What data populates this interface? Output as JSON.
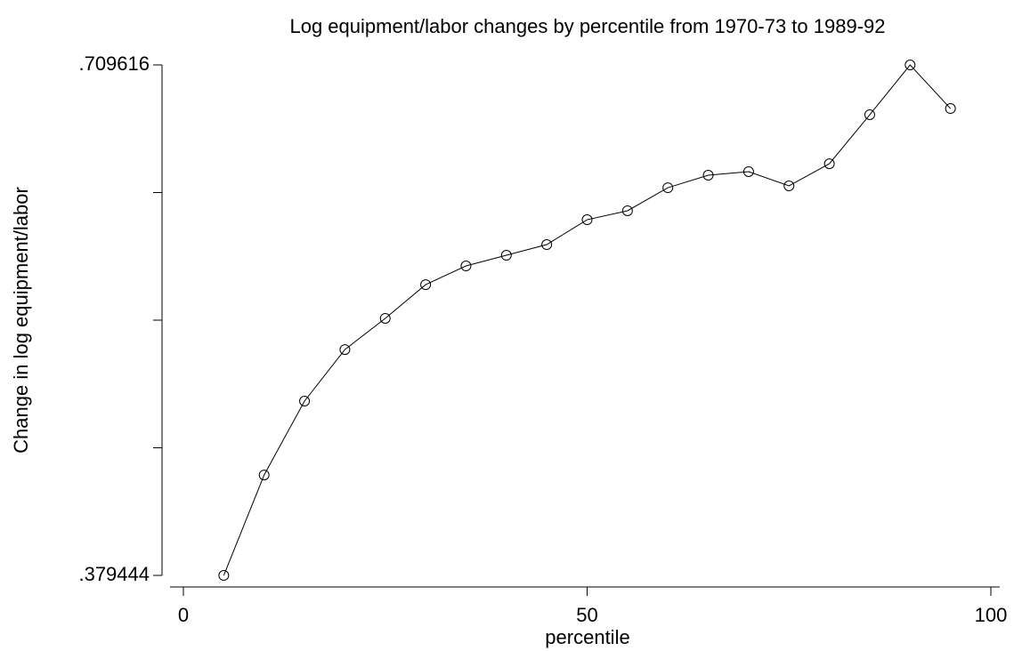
{
  "chart_data": {
    "type": "line",
    "title": "Log equipment/labor changes by percentile from 1970-73 to 1989-92",
    "x_label": "percentile",
    "y_label": "Change in log equipment/labor",
    "x": [
      5,
      10,
      15,
      20,
      25,
      30,
      35,
      40,
      45,
      50,
      55,
      60,
      65,
      70,
      75,
      80,
      85,
      90,
      95
    ],
    "series": [
      {
        "name": "Change in log equipment/labor",
        "color": "#000000",
        "values": [
          0.379444,
          0.4444,
          0.4922,
          0.5255,
          0.5457,
          0.5675,
          0.5796,
          0.5865,
          0.5934,
          0.6095,
          0.6153,
          0.6302,
          0.6383,
          0.6406,
          0.6314,
          0.6457,
          0.6774,
          0.709616,
          0.6814
        ]
      }
    ],
    "xlim": [
      0,
      100
    ],
    "xticks": [
      0,
      50,
      100
    ],
    "ylim": [
      0.379444,
      0.709616
    ],
    "yticks": [
      {
        "value": 0.379444,
        "label": ".379444"
      },
      {
        "value": 0.709616,
        "label": ".709616"
      }
    ],
    "yminor_ticks": [
      0.461987,
      0.54453,
      0.627073
    ],
    "markers": "hollow-circle",
    "grid": false
  }
}
